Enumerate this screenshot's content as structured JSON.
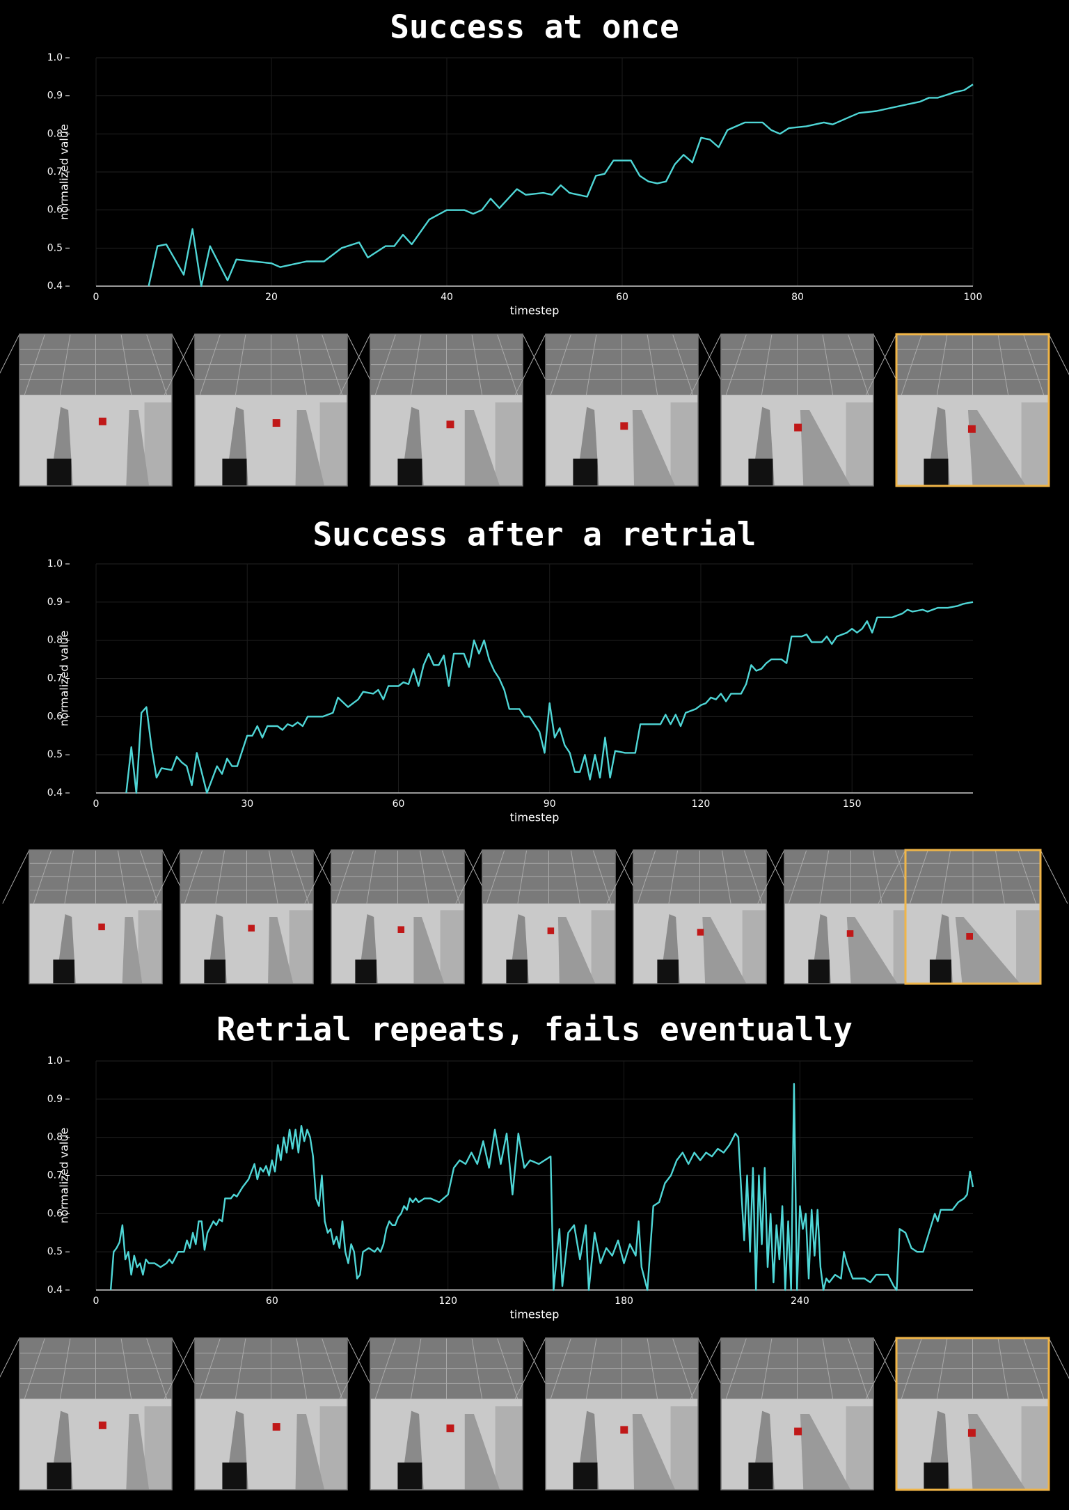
{
  "chart_data": [
    {
      "type": "line",
      "title": "Success at once",
      "xlabel": "timestep",
      "ylabel": "normalized value",
      "color": "#4fd6d6",
      "grid": true,
      "xlim": [
        0,
        100
      ],
      "ylim": [
        0.4,
        1.0
      ],
      "xticks": [
        0,
        20,
        40,
        60,
        80,
        100
      ],
      "yticks": [
        0.4,
        0.5,
        0.6,
        0.7,
        0.8,
        0.9,
        {
          "value": 1,
          "label": "1.0"
        }
      ],
      "x": [
        6,
        7,
        8,
        9,
        10,
        11,
        12,
        13,
        14,
        15,
        16,
        18,
        20,
        21,
        22,
        24,
        26,
        28,
        30,
        31,
        33,
        34,
        35,
        36,
        38,
        40,
        42,
        43,
        44,
        45,
        46,
        48,
        49,
        51,
        52,
        53,
        54,
        56,
        57,
        58,
        59,
        61,
        62,
        63,
        64,
        65,
        66,
        67,
        68,
        69,
        70,
        71,
        72,
        74,
        76,
        77,
        78,
        79,
        81,
        83,
        84,
        86,
        87,
        89,
        92,
        94,
        95,
        96,
        98,
        99,
        100
      ],
      "values": [
        0.4,
        0.505,
        0.51,
        0.47,
        0.43,
        0.55,
        0.4,
        0.505,
        0.46,
        0.415,
        0.47,
        0.465,
        0.46,
        0.45,
        0.455,
        0.465,
        0.465,
        0.5,
        0.515,
        0.475,
        0.505,
        0.505,
        0.535,
        0.51,
        0.575,
        0.6,
        0.6,
        0.59,
        0.6,
        0.63,
        0.605,
        0.655,
        0.64,
        0.645,
        0.64,
        0.665,
        0.645,
        0.635,
        0.69,
        0.695,
        0.73,
        0.73,
        0.69,
        0.675,
        0.67,
        0.675,
        0.72,
        0.745,
        0.725,
        0.79,
        0.785,
        0.765,
        0.81,
        0.83,
        0.83,
        0.81,
        0.8,
        0.815,
        0.82,
        0.83,
        0.825,
        0.845,
        0.855,
        0.86,
        0.875,
        0.885,
        0.895,
        0.895,
        0.91,
        0.915,
        0.93
      ]
    },
    {
      "type": "line",
      "title": "Success after a retrial",
      "xlabel": "timestep",
      "ylabel": "normalized value",
      "color": "#4fd6d6",
      "grid": true,
      "xlim": [
        0,
        174
      ],
      "ylim": [
        0.4,
        1.0
      ],
      "xticks": [
        0,
        30,
        60,
        90,
        120,
        150
      ],
      "yticks": [
        0.4,
        0.5,
        0.6,
        0.7,
        0.8,
        0.9,
        {
          "value": 1,
          "label": "1.0"
        }
      ],
      "x": [
        6,
        7,
        8,
        9,
        10,
        11,
        12,
        13,
        15,
        16,
        17,
        18,
        19,
        20,
        22,
        24,
        25,
        26,
        27,
        28,
        30,
        31,
        32,
        33,
        34,
        36,
        37,
        38,
        39,
        40,
        41,
        42,
        45,
        47,
        48,
        50,
        52,
        53,
        55,
        56,
        57,
        58,
        60,
        61,
        62,
        63,
        64,
        65,
        66,
        67,
        68,
        69,
        70,
        71,
        73,
        74,
        75,
        76,
        77,
        78,
        79,
        80,
        81,
        82,
        84,
        85,
        86,
        88,
        89,
        90,
        91,
        92,
        93,
        94,
        95,
        96,
        97,
        98,
        99,
        100,
        101,
        102,
        103,
        105,
        106,
        107,
        108,
        110,
        112,
        113,
        114,
        115,
        116,
        117,
        119,
        120,
        121,
        122,
        123,
        124,
        125,
        126,
        128,
        129,
        130,
        131,
        132,
        133,
        134,
        136,
        137,
        138,
        140,
        141,
        142,
        144,
        145,
        146,
        147,
        149,
        150,
        151,
        152,
        153,
        154,
        155,
        158,
        160,
        161,
        162,
        164,
        165,
        167,
        169,
        171,
        172,
        174
      ],
      "values": [
        0.4,
        0.52,
        0.4,
        0.61,
        0.625,
        0.52,
        0.44,
        0.465,
        0.46,
        0.495,
        0.48,
        0.47,
        0.42,
        0.505,
        0.4,
        0.47,
        0.45,
        0.49,
        0.47,
        0.47,
        0.55,
        0.55,
        0.575,
        0.545,
        0.575,
        0.575,
        0.565,
        0.58,
        0.575,
        0.585,
        0.575,
        0.6,
        0.6,
        0.61,
        0.65,
        0.625,
        0.645,
        0.665,
        0.66,
        0.67,
        0.645,
        0.68,
        0.68,
        0.69,
        0.685,
        0.725,
        0.68,
        0.735,
        0.765,
        0.735,
        0.735,
        0.76,
        0.68,
        0.765,
        0.765,
        0.73,
        0.8,
        0.765,
        0.8,
        0.75,
        0.72,
        0.7,
        0.67,
        0.62,
        0.62,
        0.6,
        0.6,
        0.56,
        0.505,
        0.635,
        0.545,
        0.57,
        0.525,
        0.505,
        0.455,
        0.455,
        0.5,
        0.435,
        0.5,
        0.44,
        0.545,
        0.44,
        0.51,
        0.505,
        0.505,
        0.505,
        0.58,
        0.58,
        0.58,
        0.605,
        0.58,
        0.605,
        0.575,
        0.61,
        0.62,
        0.63,
        0.635,
        0.65,
        0.645,
        0.66,
        0.64,
        0.66,
        0.66,
        0.685,
        0.735,
        0.72,
        0.725,
        0.74,
        0.75,
        0.75,
        0.74,
        0.81,
        0.81,
        0.815,
        0.795,
        0.795,
        0.81,
        0.79,
        0.81,
        0.82,
        0.83,
        0.82,
        0.83,
        0.85,
        0.82,
        0.86,
        0.86,
        0.87,
        0.88,
        0.875,
        0.88,
        0.875,
        0.885,
        0.885,
        0.89,
        0.895,
        0.9
      ]
    },
    {
      "type": "line",
      "title": "Retrial repeats, fails eventually",
      "xlabel": "timestep",
      "ylabel": "normalized value",
      "color": "#4fd6d6",
      "grid": true,
      "xlim": [
        0,
        299
      ],
      "ylim": [
        0.4,
        1.0
      ],
      "xticks": [
        0,
        60,
        120,
        180,
        240
      ],
      "yticks": [
        0.4,
        0.5,
        0.6,
        0.7,
        0.8,
        0.9,
        {
          "value": 1,
          "label": "1.0"
        }
      ],
      "x": [
        5,
        6,
        7,
        8,
        9,
        10,
        11,
        12,
        13,
        14,
        15,
        16,
        17,
        18,
        20,
        22,
        24,
        25,
        26,
        28,
        30,
        31,
        32,
        33,
        34,
        35,
        36,
        37,
        38,
        40,
        41,
        42,
        43,
        44,
        46,
        47,
        48,
        50,
        52,
        53,
        54,
        55,
        56,
        57,
        58,
        59,
        60,
        61,
        62,
        63,
        64,
        65,
        66,
        67,
        68,
        69,
        70,
        71,
        72,
        73,
        74,
        75,
        76,
        77,
        78,
        79,
        80,
        81,
        82,
        83,
        84,
        85,
        86,
        87,
        88,
        89,
        90,
        91,
        93,
        95,
        96,
        97,
        98,
        99,
        100,
        101,
        102,
        103,
        104,
        105,
        106,
        107,
        108,
        109,
        110,
        112,
        114,
        117,
        120,
        122,
        124,
        126,
        128,
        130,
        132,
        134,
        136,
        138,
        140,
        142,
        144,
        146,
        148,
        151,
        155,
        156,
        158,
        159,
        161,
        163,
        165,
        167,
        168,
        170,
        172,
        174,
        176,
        178,
        180,
        182,
        184,
        185,
        186,
        188,
        190,
        192,
        194,
        196,
        198,
        200,
        202,
        204,
        206,
        208,
        210,
        212,
        214,
        216,
        218,
        219,
        220,
        221,
        222,
        223,
        224,
        225,
        226,
        227,
        228,
        229,
        230,
        231,
        232,
        233,
        234,
        235,
        236,
        237,
        238,
        239,
        240,
        241,
        242,
        243,
        244,
        245,
        246,
        247,
        248,
        249,
        250,
        252,
        254,
        255,
        256,
        258,
        262,
        264,
        266,
        270,
        272,
        273,
        274,
        276,
        277,
        278,
        280,
        282,
        284,
        286,
        287,
        288,
        292,
        294,
        296,
        297,
        298,
        299
      ],
      "values": [
        0.4,
        0.5,
        0.51,
        0.525,
        0.57,
        0.48,
        0.5,
        0.44,
        0.49,
        0.46,
        0.47,
        0.44,
        0.48,
        0.47,
        0.47,
        0.46,
        0.47,
        0.48,
        0.47,
        0.5,
        0.5,
        0.53,
        0.51,
        0.55,
        0.52,
        0.58,
        0.58,
        0.505,
        0.55,
        0.58,
        0.57,
        0.585,
        0.58,
        0.64,
        0.64,
        0.65,
        0.645,
        0.67,
        0.69,
        0.71,
        0.73,
        0.69,
        0.72,
        0.71,
        0.725,
        0.7,
        0.74,
        0.71,
        0.78,
        0.74,
        0.8,
        0.76,
        0.82,
        0.77,
        0.82,
        0.76,
        0.83,
        0.79,
        0.82,
        0.8,
        0.75,
        0.64,
        0.62,
        0.7,
        0.58,
        0.55,
        0.56,
        0.52,
        0.54,
        0.51,
        0.58,
        0.5,
        0.47,
        0.52,
        0.5,
        0.43,
        0.44,
        0.5,
        0.51,
        0.5,
        0.51,
        0.5,
        0.52,
        0.56,
        0.58,
        0.57,
        0.57,
        0.59,
        0.6,
        0.62,
        0.61,
        0.64,
        0.63,
        0.64,
        0.63,
        0.64,
        0.64,
        0.63,
        0.65,
        0.72,
        0.74,
        0.73,
        0.76,
        0.73,
        0.79,
        0.72,
        0.82,
        0.73,
        0.81,
        0.65,
        0.81,
        0.72,
        0.74,
        0.73,
        0.75,
        0.4,
        0.56,
        0.41,
        0.55,
        0.57,
        0.48,
        0.57,
        0.4,
        0.55,
        0.47,
        0.51,
        0.49,
        0.53,
        0.47,
        0.52,
        0.49,
        0.58,
        0.46,
        0.4,
        0.62,
        0.63,
        0.68,
        0.7,
        0.74,
        0.76,
        0.73,
        0.76,
        0.74,
        0.76,
        0.75,
        0.77,
        0.76,
        0.78,
        0.81,
        0.8,
        0.66,
        0.53,
        0.7,
        0.5,
        0.72,
        0.4,
        0.7,
        0.52,
        0.72,
        0.46,
        0.6,
        0.42,
        0.57,
        0.48,
        0.62,
        0.4,
        0.58,
        0.4,
        0.94,
        0.4,
        0.62,
        0.56,
        0.6,
        0.43,
        0.61,
        0.49,
        0.61,
        0.46,
        0.4,
        0.43,
        0.42,
        0.44,
        0.43,
        0.5,
        0.47,
        0.43,
        0.43,
        0.42,
        0.44,
        0.44,
        0.41,
        0.4,
        0.56,
        0.55,
        0.53,
        0.51,
        0.5,
        0.5,
        0.55,
        0.6,
        0.58,
        0.61,
        0.61,
        0.63,
        0.64,
        0.65,
        0.71,
        0.67
      ]
    }
  ]
}
